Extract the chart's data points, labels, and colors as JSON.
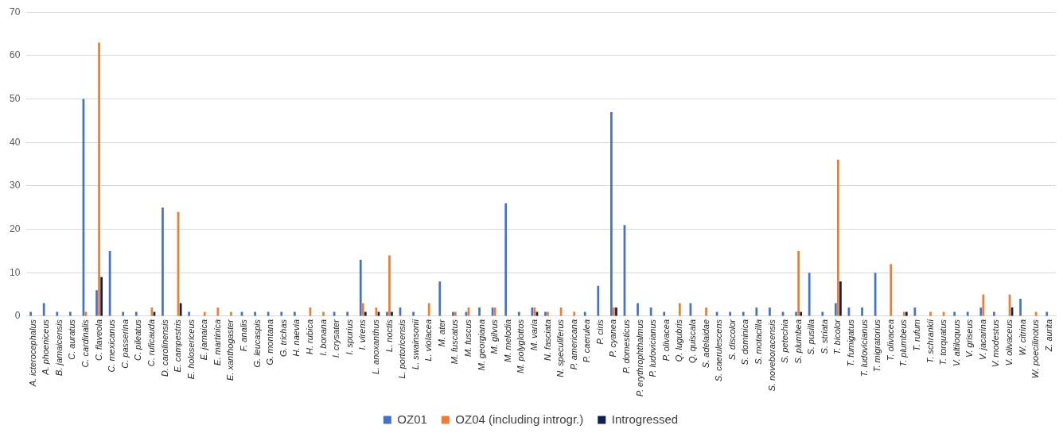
{
  "chart_data": {
    "type": "bar",
    "categories": [
      "A. icterocephalus",
      "A. phoeniceus",
      "B. jamaicensis",
      "C. auratus",
      "C. cardinalis",
      "C. flaveola",
      "C. mexicanus",
      "C. passerina",
      "C. pileatus",
      "C. ruficauda",
      "D. carolinensis",
      "E. campestris",
      "E. holosericeus",
      "E. jamaica",
      "E. martinica",
      "E. xanthogaster",
      "F. analis",
      "G. leucaspis",
      "G. montana",
      "G. trichas",
      "H. naevia",
      "H. rubica",
      "I. bonana",
      "I. crysater",
      "I. spurius",
      "I. virens",
      "L. anoxanthus",
      "L. noctis",
      "L. portoricensis",
      "L. swainsonii",
      "L. violacea",
      "M. ater",
      "M. fuscatus",
      "M. fuscus",
      "M. georgiana",
      "M. gilvus",
      "M. melodia",
      "M. polyglottos",
      "M. varia",
      "N. fasciata",
      "N. speculiferus",
      "P. americana",
      "P. caerulea",
      "P. ciris",
      "P. cyanea",
      "P. domesticus",
      "P. erythrophthalmus",
      "P. ludovicianus",
      "P. olivacea",
      "Q. lugubris",
      "Q. quiscala",
      "S. adelaidae",
      "S. caerulescens",
      "S. discolor",
      "S. dominica",
      "S. motacilla",
      "S. noveboracensis",
      "S. petechia",
      "S. plumbea",
      "S. pusilla",
      "S. striata",
      "T. bicolor",
      "T. fumigatus",
      "T. ludovicianus",
      "T. migratorius",
      "T. olivacea",
      "T. plumbeus",
      "T. rufum",
      "T. schrankii",
      "T. torquatus",
      "V. altiloquus",
      "V. griseus",
      "V. jacarina",
      "V. modestus",
      "V. olivaceus",
      "W. citrina",
      "W. poecilinotus",
      "Z. aurita"
    ],
    "series": [
      {
        "name": "OZ01",
        "color": "#4472c4",
        "values": [
          1,
          3,
          1,
          1,
          50,
          6,
          15,
          1,
          1,
          null,
          25,
          null,
          1,
          null,
          null,
          null,
          1,
          1,
          1,
          1,
          1,
          null,
          null,
          1,
          1,
          13,
          null,
          1,
          2,
          1,
          null,
          8,
          1,
          1,
          2,
          2,
          26,
          1,
          2,
          1,
          null,
          null,
          1,
          7,
          47,
          21,
          3,
          2,
          1,
          null,
          3,
          null,
          1,
          1,
          1,
          2,
          2,
          1,
          1,
          10,
          1,
          3,
          2,
          2,
          10,
          null,
          null,
          2,
          null,
          null,
          1,
          1,
          2,
          1,
          null,
          4,
          null,
          1
        ]
      },
      {
        "name": "OZ04 (including introgr.)",
        "color": "#ed7d31",
        "values": [
          null,
          null,
          null,
          null,
          1,
          63,
          null,
          null,
          null,
          2,
          null,
          24,
          null,
          1,
          2,
          1,
          null,
          null,
          null,
          null,
          null,
          2,
          1,
          null,
          null,
          3,
          2,
          14,
          null,
          null,
          3,
          null,
          1,
          2,
          null,
          2,
          null,
          null,
          2,
          1,
          2,
          1,
          null,
          null,
          2,
          null,
          null,
          null,
          null,
          3,
          null,
          2,
          null,
          null,
          null,
          null,
          null,
          null,
          15,
          null,
          null,
          36,
          null,
          null,
          null,
          12,
          1,
          null,
          1,
          1,
          null,
          null,
          5,
          null,
          5,
          null,
          1,
          null
        ]
      },
      {
        "name": "Introgressed",
        "color": "#0e1f52",
        "values": [
          null,
          null,
          null,
          null,
          null,
          9,
          null,
          null,
          null,
          1,
          null,
          3,
          null,
          null,
          null,
          null,
          null,
          null,
          null,
          null,
          null,
          null,
          null,
          null,
          null,
          1,
          1,
          1,
          null,
          null,
          null,
          null,
          null,
          null,
          null,
          null,
          null,
          null,
          1,
          null,
          null,
          null,
          null,
          null,
          2,
          null,
          null,
          null,
          null,
          null,
          null,
          null,
          null,
          null,
          null,
          null,
          null,
          null,
          1,
          null,
          null,
          8,
          null,
          null,
          null,
          null,
          1,
          null,
          null,
          null,
          null,
          null,
          null,
          null,
          2,
          null,
          null,
          null
        ]
      }
    ],
    "ylim": [
      0,
      70
    ],
    "yticks": [
      0,
      10,
      20,
      30,
      40,
      50,
      60,
      70
    ],
    "grid": "y",
    "legend": "bottom"
  }
}
